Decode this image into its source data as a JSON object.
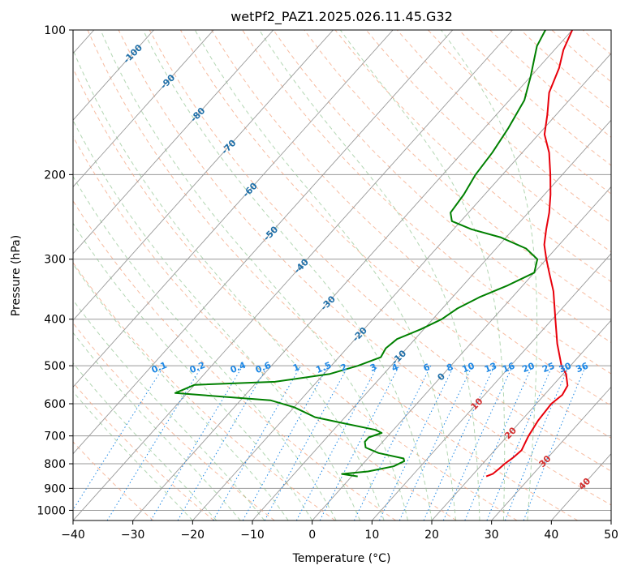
{
  "chart_data": {
    "type": "line",
    "title": "wetPf2_PAZ1.2025.026.11.45.G32",
    "xlabel": "Temperature (°C)",
    "ylabel": "Pressure (hPa)",
    "xlim": [
      -40,
      50
    ],
    "ylim": [
      1050,
      100
    ],
    "y_scale": "log",
    "x_ticks": [
      "−40",
      "−30",
      "−20",
      "−10",
      "0",
      "10",
      "20",
      "30",
      "40",
      "50"
    ],
    "y_ticks": [
      1000,
      900,
      800,
      700,
      600,
      500,
      400,
      300,
      200,
      100
    ],
    "colors": {
      "temperature": "#e8000b",
      "dewpoint": "#008000",
      "isotherm": "#999999",
      "dry_adiabat": "#f4a582",
      "moist_adiabat": "#92c592",
      "mixing_ratio": "#1e88e5",
      "isotherm_label": "#1f6fa8",
      "warm_label": "#d32f2f"
    },
    "isotherm_labels": [
      {
        "t": -100,
        "text": "-100"
      },
      {
        "t": -90,
        "text": "-90"
      },
      {
        "t": -80,
        "text": "-80"
      },
      {
        "t": -70,
        "text": "-70"
      },
      {
        "t": -60,
        "text": "-60"
      },
      {
        "t": -50,
        "text": "-50"
      },
      {
        "t": -40,
        "text": "-40"
      },
      {
        "t": -30,
        "text": "-30"
      },
      {
        "t": -20,
        "text": "-20"
      },
      {
        "t": -10,
        "text": "-10"
      },
      {
        "t": 0,
        "text": "0"
      }
    ],
    "warm_isotherm_labels": [
      {
        "t": 10,
        "text": "10"
      },
      {
        "t": 20,
        "text": "20"
      },
      {
        "t": 30,
        "text": "30"
      },
      {
        "t": 40,
        "text": "40"
      }
    ],
    "mixing_ratio_labels": [
      "0.1",
      "0.2",
      "0.4",
      "0.6",
      "1",
      "1.5",
      "2",
      "3",
      "4",
      "6",
      "8",
      "10",
      "13",
      "16",
      "20",
      "25",
      "30",
      "36"
    ],
    "mixing_ratio_values": [
      0.1,
      0.2,
      0.4,
      0.6,
      1,
      1.5,
      2,
      3,
      4,
      6,
      8,
      10,
      13,
      16,
      20,
      25,
      30,
      36
    ],
    "series": [
      {
        "key": "temperature",
        "points": [
          [
            850,
            22.5
          ],
          [
            840,
            23.2
          ],
          [
            820,
            23.5
          ],
          [
            800,
            23.7
          ],
          [
            775,
            24.2
          ],
          [
            750,
            24.5
          ],
          [
            725,
            24.0
          ],
          [
            700,
            23.5
          ],
          [
            650,
            22.8
          ],
          [
            600,
            22.5
          ],
          [
            575,
            23.0
          ],
          [
            550,
            22.5
          ],
          [
            520,
            20.5
          ],
          [
            500,
            18.5
          ],
          [
            450,
            14.5
          ],
          [
            400,
            10.5
          ],
          [
            350,
            6.0
          ],
          [
            320,
            2.5
          ],
          [
            300,
            0.0
          ],
          [
            280,
            -2.5
          ],
          [
            260,
            -4.5
          ],
          [
            240,
            -6.5
          ],
          [
            220,
            -9.0
          ],
          [
            200,
            -12.0
          ],
          [
            180,
            -15.5
          ],
          [
            165,
            -19.0
          ],
          [
            150,
            -21.5
          ],
          [
            135,
            -24.5
          ],
          [
            120,
            -26.5
          ],
          [
            110,
            -28.5
          ],
          [
            100,
            -30.0
          ]
        ]
      },
      {
        "key": "dewpoint",
        "points": [
          [
            850,
            1.0
          ],
          [
            840,
            -2.0
          ],
          [
            830,
            2.0
          ],
          [
            810,
            5.5
          ],
          [
            790,
            6.5
          ],
          [
            780,
            6.0
          ],
          [
            760,
            1.0
          ],
          [
            740,
            -2.0
          ],
          [
            720,
            -3.0
          ],
          [
            705,
            -3.0
          ],
          [
            690,
            -1.5
          ],
          [
            680,
            -3.0
          ],
          [
            660,
            -9.0
          ],
          [
            640,
            -15.0
          ],
          [
            610,
            -20.0
          ],
          [
            590,
            -25.0
          ],
          [
            570,
            -42.0
          ],
          [
            548,
            -40.0
          ],
          [
            540,
            -27.0
          ],
          [
            520,
            -19.0
          ],
          [
            500,
            -15.5
          ],
          [
            480,
            -13.0
          ],
          [
            460,
            -13.5
          ],
          [
            440,
            -13.0
          ],
          [
            420,
            -10.5
          ],
          [
            400,
            -8.5
          ],
          [
            380,
            -7.5
          ],
          [
            360,
            -5.5
          ],
          [
            340,
            -2.5
          ],
          [
            320,
            0.0
          ],
          [
            300,
            -1.5
          ],
          [
            285,
            -5.0
          ],
          [
            270,
            -11.0
          ],
          [
            260,
            -17.0
          ],
          [
            250,
            -21.5
          ],
          [
            240,
            -23.0
          ],
          [
            220,
            -23.5
          ],
          [
            200,
            -24.5
          ],
          [
            180,
            -25.0
          ],
          [
            160,
            -26.0
          ],
          [
            140,
            -27.5
          ],
          [
            125,
            -30.0
          ],
          [
            115,
            -32.0
          ],
          [
            108,
            -33.5
          ],
          [
            100,
            -34.5
          ]
        ]
      }
    ]
  }
}
